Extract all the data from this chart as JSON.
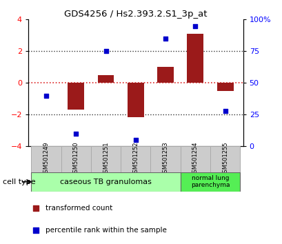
{
  "title": "GDS4256 / Hs2.393.2.S1_3p_at",
  "samples": [
    "GSM501249",
    "GSM501250",
    "GSM501251",
    "GSM501252",
    "GSM501253",
    "GSM501254",
    "GSM501255"
  ],
  "red_bars": [
    0.0,
    -1.7,
    0.5,
    -2.15,
    1.0,
    3.1,
    -0.5
  ],
  "blue_dots": [
    40,
    10,
    75,
    5,
    85,
    95,
    28
  ],
  "ylim_left": [
    -4,
    4
  ],
  "ylim_right": [
    0,
    100
  ],
  "left_ticks": [
    -4,
    -2,
    0,
    2,
    4
  ],
  "right_ticks": [
    0,
    25,
    50,
    75,
    100
  ],
  "right_tick_labels": [
    "0",
    "25",
    "50",
    "75",
    "100%"
  ],
  "group1_label": "caseous TB granulomas",
  "group1_color": "#aaffaa",
  "group2_label": "normal lung\nparenchyma",
  "group2_color": "#55ee55",
  "cell_type_label": "cell type",
  "legend_red": "transformed count",
  "legend_blue": "percentile rank within the sample",
  "bar_color": "#9b1a1a",
  "dot_color": "#0000cc",
  "zero_line_color": "#dd2222",
  "dotted_line_color": "#333333",
  "bar_width": 0.55,
  "sample_box_color": "#cccccc",
  "sample_box_edge": "#aaaaaa"
}
